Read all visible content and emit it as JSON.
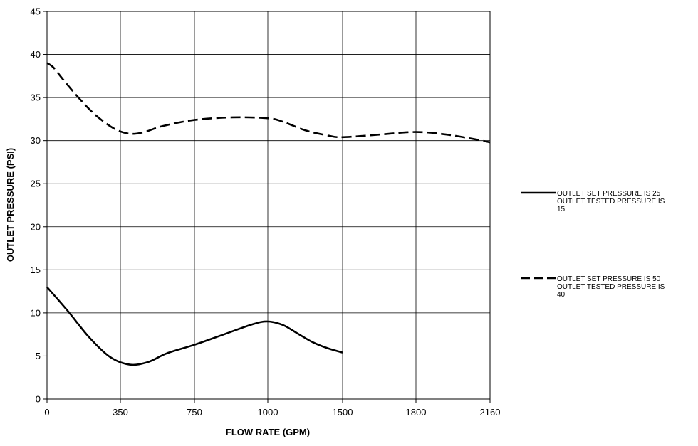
{
  "chart_data": {
    "type": "line",
    "title": "",
    "xlabel": "FLOW RATE (GPM)",
    "ylabel": "OUTLET PRESSURE (PSI)",
    "x_ticks": [
      "0",
      "350",
      "750",
      "1000",
      "1500",
      "1800",
      "2160"
    ],
    "ylim": [
      0,
      45
    ],
    "y_step": 5,
    "grid": true,
    "legend_position": "right",
    "series": [
      {
        "name": "OUTLET SET PRESSURE IS 25 OUTLET TESTED PRESSURE IS 15",
        "legend_lines": [
          "OUTLET SET PRESSURE IS 25",
          "OUTLET TESTED PRESSURE IS",
          "15"
        ],
        "line_style": "solid",
        "color": "#000000",
        "points": [
          {
            "x": 0,
            "y": 13
          },
          {
            "x": 100,
            "y": 10.2
          },
          {
            "x": 200,
            "y": 7.2
          },
          {
            "x": 300,
            "y": 4.9
          },
          {
            "x": 400,
            "y": 4.0
          },
          {
            "x": 500,
            "y": 4.3
          },
          {
            "x": 600,
            "y": 5.3
          },
          {
            "x": 750,
            "y": 6.3
          },
          {
            "x": 850,
            "y": 7.5
          },
          {
            "x": 950,
            "y": 8.7
          },
          {
            "x": 1000,
            "y": 9.0
          },
          {
            "x": 1100,
            "y": 8.6
          },
          {
            "x": 1200,
            "y": 7.6
          },
          {
            "x": 1300,
            "y": 6.6
          },
          {
            "x": 1400,
            "y": 5.9
          },
          {
            "x": 1500,
            "y": 5.4
          }
        ]
      },
      {
        "name": "OUTLET SET PRESSURE IS 50 OUTLET TESTED PRESSURE IS 40",
        "legend_lines": [
          "OUTLET SET PRESSURE IS 50",
          "OUTLET TESTED PRESSURE IS",
          "40"
        ],
        "line_style": "dashed",
        "color": "#000000",
        "points": [
          {
            "x": 0,
            "y": 39
          },
          {
            "x": 30,
            "y": 38.5
          },
          {
            "x": 80,
            "y": 37
          },
          {
            "x": 150,
            "y": 35
          },
          {
            "x": 230,
            "y": 33
          },
          {
            "x": 320,
            "y": 31.4
          },
          {
            "x": 400,
            "y": 30.8
          },
          {
            "x": 480,
            "y": 31.0
          },
          {
            "x": 580,
            "y": 31.7
          },
          {
            "x": 750,
            "y": 32.4
          },
          {
            "x": 880,
            "y": 32.7
          },
          {
            "x": 1000,
            "y": 32.6
          },
          {
            "x": 1100,
            "y": 32.2
          },
          {
            "x": 1250,
            "y": 31.2
          },
          {
            "x": 1400,
            "y": 30.6
          },
          {
            "x": 1500,
            "y": 30.4
          },
          {
            "x": 1650,
            "y": 30.7
          },
          {
            "x": 1800,
            "y": 31.0
          },
          {
            "x": 1950,
            "y": 30.7
          },
          {
            "x": 2100,
            "y": 30.1
          },
          {
            "x": 2160,
            "y": 29.8
          }
        ]
      }
    ]
  }
}
